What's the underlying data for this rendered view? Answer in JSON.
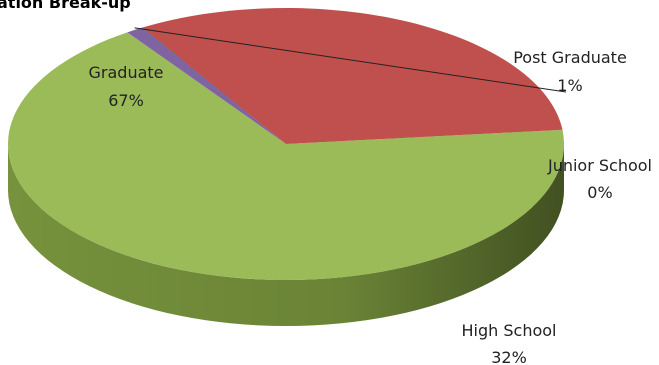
{
  "chart_data": {
    "type": "pie",
    "title": "ation Break-up",
    "categories": [
      "Graduate",
      "Post Graduate",
      "Junior School",
      "High School"
    ],
    "values": [
      67,
      1,
      0,
      32
    ],
    "value_labels": [
      "67%",
      "1%",
      "0%",
      "32%"
    ],
    "colors": [
      "#9bbb59",
      "#8064a2",
      "#4f81bd",
      "#c0504d"
    ],
    "side_colors": [
      "#76923c",
      "#5f497a",
      "#365f91",
      "#7b2523"
    ],
    "style": "3d",
    "legend": "none"
  }
}
